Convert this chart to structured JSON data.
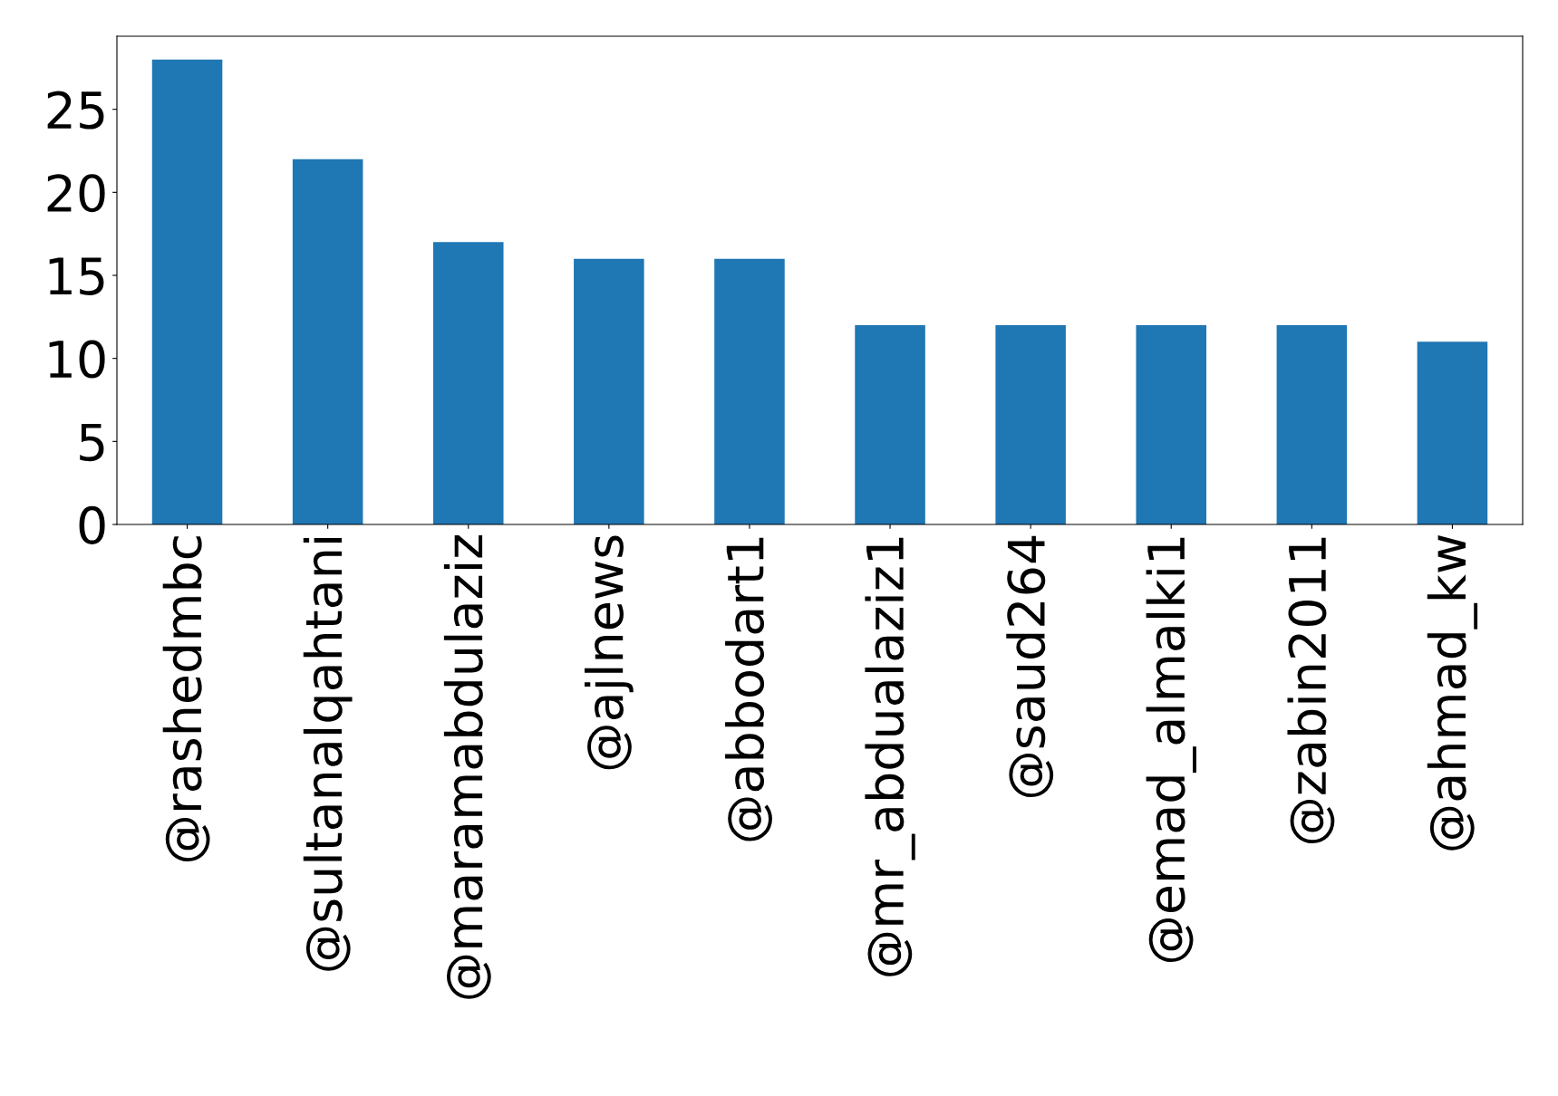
{
  "chart_data": {
    "type": "bar",
    "categories": [
      "@rashedmbc",
      "@sultanalqahtani",
      "@maramabdulaziz",
      "@ajlnews",
      "@abbodart1",
      "@mr_abdualaziz1",
      "@saud264",
      "@emad_almalki1",
      "@zabin2011",
      "@ahmad_kw"
    ],
    "values": [
      28,
      22,
      17,
      16,
      16,
      12,
      12,
      12,
      12,
      11
    ],
    "color": "#1f77b4",
    "ylim": [
      0,
      29.4
    ],
    "yticks": [
      0,
      5,
      10,
      15,
      20,
      25
    ],
    "grid": false,
    "legend": false
  }
}
